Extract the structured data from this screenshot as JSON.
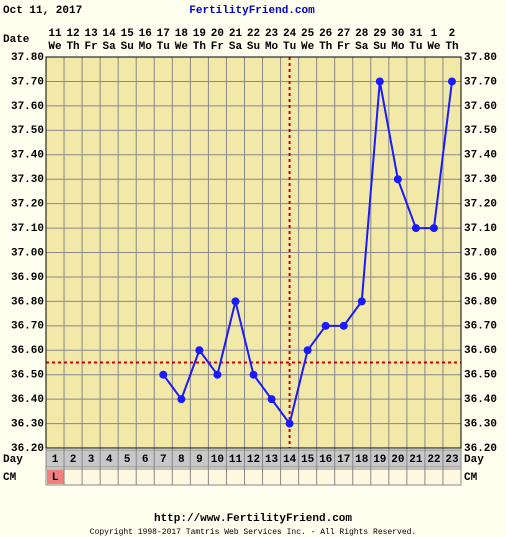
{
  "chart_data": {
    "type": "line",
    "date": "Oct 11, 2017",
    "site": "FertilityFriend.com",
    "date_label": "Date",
    "day_label": "Day",
    "cm_label": "CM",
    "dates": [
      11,
      12,
      13,
      14,
      15,
      16,
      17,
      18,
      19,
      20,
      21,
      22,
      23,
      24,
      25,
      26,
      27,
      28,
      29,
      30,
      31,
      1,
      2
    ],
    "weekdays": [
      "We",
      "Th",
      "Fr",
      "Sa",
      "Su",
      "Mo",
      "Tu",
      "We",
      "Th",
      "Fr",
      "Sa",
      "Su",
      "Mo",
      "Tu",
      "We",
      "Th",
      "Fr",
      "Sa",
      "Su",
      "Mo",
      "Tu",
      "We",
      "Th"
    ],
    "days": [
      1,
      2,
      3,
      4,
      5,
      6,
      7,
      8,
      9,
      10,
      11,
      12,
      13,
      14,
      15,
      16,
      17,
      18,
      19,
      20,
      21,
      22,
      23
    ],
    "cm": [
      "L",
      null,
      null,
      null,
      null,
      null,
      null,
      null,
      null,
      null,
      null,
      null,
      null,
      null,
      null,
      null,
      null,
      null,
      null,
      null,
      null,
      null,
      null
    ],
    "values": [
      null,
      null,
      null,
      null,
      null,
      null,
      36.5,
      36.4,
      36.6,
      36.5,
      36.8,
      36.5,
      36.4,
      36.3,
      36.6,
      36.7,
      36.7,
      36.8,
      37.7,
      37.3,
      37.1,
      37.1,
      37.7
    ],
    "color": "#1a1aff",
    "ylim": [
      36.2,
      37.8
    ],
    "yticks": [
      {
        "value": 36.2,
        "label": "36.20"
      },
      {
        "value": 36.3,
        "label": "36.30"
      },
      {
        "value": 36.4,
        "label": "36.40"
      },
      {
        "value": 36.5,
        "label": "36.50"
      },
      {
        "value": 36.6,
        "label": "36.60"
      },
      {
        "value": 36.7,
        "label": "36.70"
      },
      {
        "value": 36.8,
        "label": "36.80"
      },
      {
        "value": 36.9,
        "label": "36.90"
      },
      {
        "value": 37.0,
        "label": "37.00"
      },
      {
        "value": 37.1,
        "label": "37.10"
      },
      {
        "value": 37.2,
        "label": "37.20"
      },
      {
        "value": 37.3,
        "label": "37.30"
      },
      {
        "value": 37.4,
        "label": "37.40"
      },
      {
        "value": 37.5,
        "label": "37.50"
      },
      {
        "value": 37.6,
        "label": "37.60"
      },
      {
        "value": 37.7,
        "label": "37.70"
      },
      {
        "value": 37.8,
        "label": "37.80"
      }
    ],
    "coverline": 36.55,
    "ovulation_day": 14,
    "grid": true
  },
  "footer": {
    "url": "http://www.FertilityFriend.com",
    "copyright": "Copyright 1998-2017 Tamtris Web Services Inc. - All Rights Reserved."
  }
}
